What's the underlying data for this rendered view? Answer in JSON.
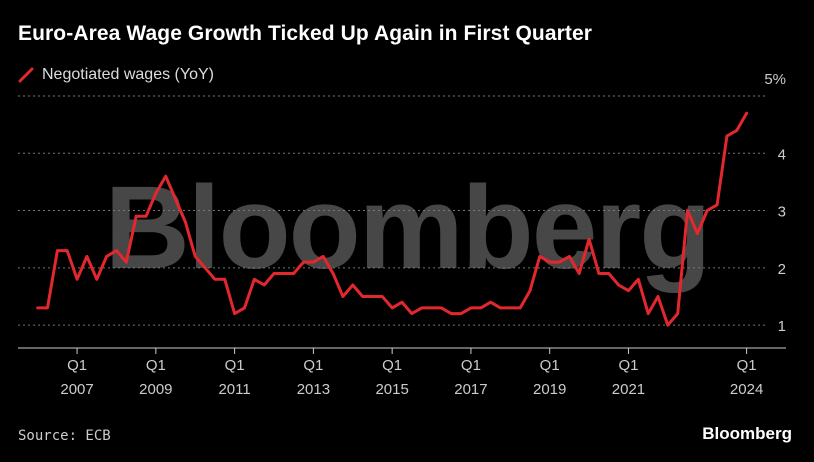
{
  "header": {
    "title": "Euro-Area Wage Growth Ticked Up Again in First Quarter"
  },
  "watermark": {
    "text": "Bloomberg"
  },
  "footer": {
    "source": "Source: ECB",
    "brand": "Bloomberg"
  },
  "colors": {
    "line": "#e3282d",
    "grid": "#777777",
    "axis": "#cccccc"
  },
  "chart_data": {
    "type": "line",
    "title": "Euro-Area Wage Growth Ticked Up Again in First Quarter",
    "xlabel": "",
    "ylabel": "",
    "ylim": [
      0.6,
      5
    ],
    "xlim": [
      2005.5,
      2025.0
    ],
    "yticks": [
      {
        "v": 1,
        "label": "1"
      },
      {
        "v": 2,
        "label": "2"
      },
      {
        "v": 3,
        "label": "3"
      },
      {
        "v": 4,
        "label": "4"
      },
      {
        "v": 5,
        "label": "5%"
      }
    ],
    "xticks": [
      {
        "v": 2007,
        "q": "Q1",
        "year": "2007"
      },
      {
        "v": 2009,
        "q": "Q1",
        "year": "2009"
      },
      {
        "v": 2011,
        "q": "Q1",
        "year": "2011"
      },
      {
        "v": 2013,
        "q": "Q1",
        "year": "2013"
      },
      {
        "v": 2015,
        "q": "Q1",
        "year": "2015"
      },
      {
        "v": 2017,
        "q": "Q1",
        "year": "2017"
      },
      {
        "v": 2019,
        "q": "Q1",
        "year": "2019"
      },
      {
        "v": 2021,
        "q": "Q1",
        "year": "2021"
      },
      {
        "v": 2024,
        "q": "Q1",
        "year": "2024"
      }
    ],
    "series": [
      {
        "name": "Negotiated wages (YoY)",
        "x": [
          2006.0,
          2006.25,
          2006.5,
          2006.75,
          2007.0,
          2007.25,
          2007.5,
          2007.75,
          2008.0,
          2008.25,
          2008.5,
          2008.75,
          2009.0,
          2009.25,
          2009.5,
          2009.75,
          2010.0,
          2010.25,
          2010.5,
          2010.75,
          2011.0,
          2011.25,
          2011.5,
          2011.75,
          2012.0,
          2012.25,
          2012.5,
          2012.75,
          2013.0,
          2013.25,
          2013.5,
          2013.75,
          2014.0,
          2014.25,
          2014.5,
          2014.75,
          2015.0,
          2015.25,
          2015.5,
          2015.75,
          2016.0,
          2016.25,
          2016.5,
          2016.75,
          2017.0,
          2017.25,
          2017.5,
          2017.75,
          2018.0,
          2018.25,
          2018.5,
          2018.75,
          2019.0,
          2019.25,
          2019.5,
          2019.75,
          2020.0,
          2020.25,
          2020.5,
          2020.75,
          2021.0,
          2021.25,
          2021.5,
          2021.75,
          2022.0,
          2022.25,
          2022.5,
          2022.75,
          2023.0,
          2023.25,
          2023.5,
          2023.75,
          2024.0
        ],
        "values": [
          1.3,
          1.3,
          2.3,
          2.3,
          1.8,
          2.2,
          1.8,
          2.2,
          2.3,
          2.1,
          2.9,
          2.9,
          3.3,
          3.6,
          3.2,
          2.8,
          2.2,
          2.0,
          1.8,
          1.8,
          1.2,
          1.3,
          1.8,
          1.7,
          1.9,
          1.9,
          1.9,
          2.1,
          2.1,
          2.2,
          1.9,
          1.5,
          1.7,
          1.5,
          1.5,
          1.5,
          1.3,
          1.4,
          1.2,
          1.3,
          1.3,
          1.3,
          1.2,
          1.2,
          1.3,
          1.3,
          1.4,
          1.3,
          1.3,
          1.3,
          1.6,
          2.2,
          2.1,
          2.1,
          2.2,
          1.9,
          2.5,
          1.9,
          1.9,
          1.7,
          1.6,
          1.8,
          1.2,
          1.5,
          1.0,
          1.2,
          3.0,
          2.6,
          3.0,
          3.1,
          4.3,
          4.4,
          4.7
        ]
      }
    ]
  }
}
